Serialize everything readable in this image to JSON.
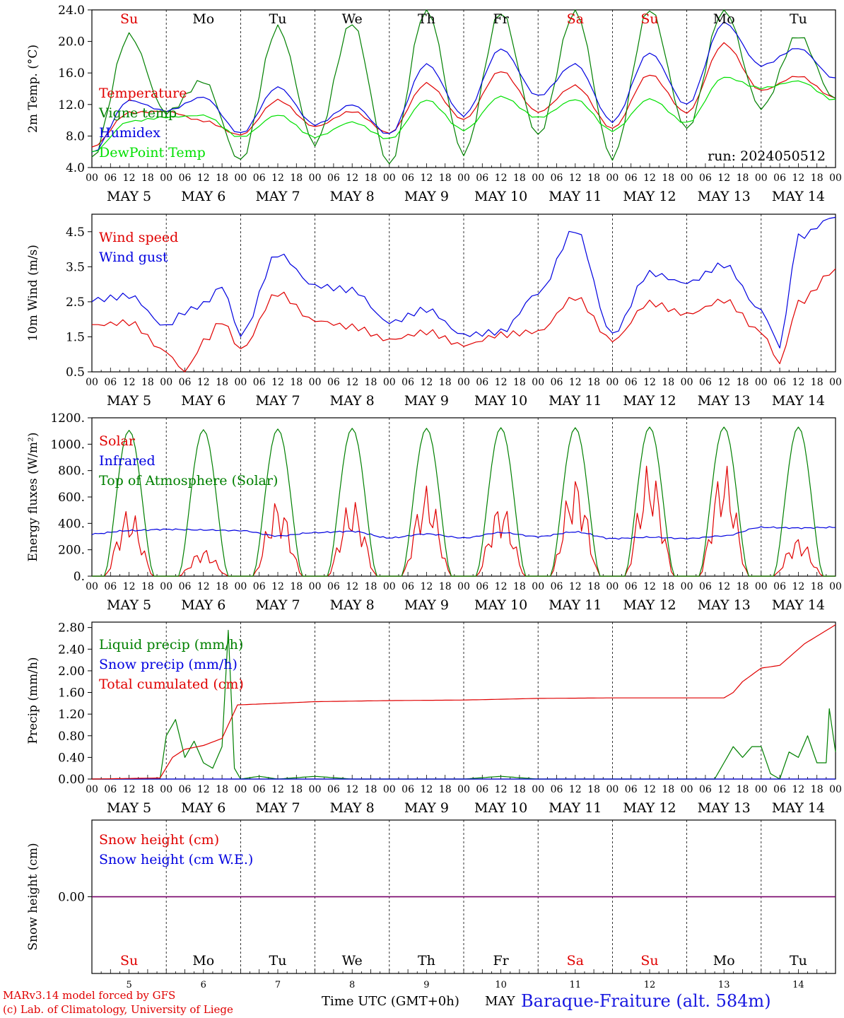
{
  "chart_data": [
    {
      "type": "line",
      "ylabel": "2m Temp. (°C)",
      "ylim": [
        4.0,
        24.0
      ],
      "yticks": [
        "4.0",
        "8.0",
        "12.0",
        "16.0",
        "20.0",
        "24.0"
      ],
      "x_hours": [
        0,
        12,
        24,
        36,
        48,
        60,
        72,
        84,
        96,
        108,
        120,
        132,
        144,
        156,
        168,
        180,
        192,
        204,
        216,
        228,
        240
      ],
      "annotation": "run: 2024050512",
      "series": [
        {
          "name": "Temperature",
          "color": "#e00000",
          "values": [
            6.6,
            11.0,
            11.2,
            10.0,
            8.2,
            12.6,
            9.2,
            11.1,
            8.3,
            14.6,
            10.0,
            16.2,
            11.0,
            14.4,
            9.0,
            15.9,
            11.0,
            19.8,
            13.8,
            15.6,
            12.8
          ]
        },
        {
          "name": "Vigne temp",
          "color": "#008000",
          "values": [
            5.2,
            20.8,
            10.8,
            14.8,
            4.6,
            21.6,
            6.8,
            22.4,
            4.4,
            24.5,
            5.9,
            24.0,
            8.2,
            24.0,
            5.0,
            24.0,
            8.6,
            24.0,
            11.3,
            20.7,
            12.7
          ]
        },
        {
          "name": "Humidex",
          "color": "#0000e0",
          "values": [
            5.8,
            12.5,
            11.2,
            13.0,
            8.4,
            14.3,
            9.5,
            12.0,
            8.2,
            17.1,
            10.5,
            19.0,
            13.0,
            17.1,
            9.8,
            18.6,
            12.0,
            22.5,
            17.0,
            19.2,
            15.3
          ]
        },
        {
          "name": "DewPoint Temp",
          "color": "#00e000",
          "values": [
            6.0,
            9.9,
            10.4,
            10.6,
            7.8,
            10.6,
            7.8,
            9.7,
            7.6,
            12.6,
            8.8,
            13.1,
            10.4,
            12.7,
            8.7,
            12.7,
            9.6,
            15.4,
            14.0,
            14.9,
            12.5
          ]
        }
      ]
    },
    {
      "type": "line",
      "ylabel": "10m Wind (m/s)",
      "ylim": [
        0.5,
        5.0
      ],
      "yticks": [
        "0.5",
        "1.5",
        "2.5",
        "3.5",
        "4.5"
      ],
      "x_hours": [
        0,
        12,
        24,
        30,
        36,
        42,
        48,
        60,
        72,
        84,
        96,
        108,
        120,
        132,
        144,
        156,
        168,
        180,
        192,
        204,
        216,
        222,
        228,
        240
      ],
      "series": [
        {
          "name": "Wind speed",
          "color": "#e00000",
          "values": [
            1.8,
            1.9,
            1.1,
            0.5,
            1.4,
            2.0,
            1.2,
            2.8,
            2.0,
            1.8,
            1.4,
            1.6,
            1.2,
            1.5,
            1.6,
            2.6,
            1.4,
            2.5,
            2.2,
            2.6,
            1.7,
            0.8,
            2.5,
            3.4
          ]
        },
        {
          "name": "Wind gust",
          "color": "#0000e0",
          "values": [
            2.6,
            2.7,
            1.8,
            2.2,
            2.4,
            2.9,
            1.5,
            3.8,
            2.9,
            2.8,
            1.9,
            2.3,
            1.6,
            1.7,
            2.8,
            4.6,
            1.6,
            3.3,
            3.0,
            3.5,
            2.2,
            1.2,
            4.3,
            4.9
          ]
        }
      ]
    },
    {
      "type": "line",
      "ylabel": "Energy fluxes (W/m²)",
      "ylim": [
        0,
        1200
      ],
      "yticks": [
        "0.",
        "200.",
        "400.",
        "600.",
        "800.",
        "1000.",
        "1200."
      ],
      "x_hours": [
        0,
        12,
        24,
        36,
        48,
        60,
        72,
        84,
        96,
        108,
        120,
        132,
        144,
        156,
        168,
        180,
        192,
        204,
        216,
        228,
        240
      ],
      "series": [
        {
          "name": "Solar",
          "color": "#e00000",
          "daily_peak": [
            520,
            210,
            590,
            590,
            690,
            570,
            770,
            860,
            860,
            300
          ]
        },
        {
          "name": "Infrared",
          "color": "#0000e0",
          "values": [
            320,
            345,
            355,
            350,
            345,
            305,
            330,
            340,
            290,
            320,
            290,
            330,
            300,
            335,
            285,
            295,
            285,
            305,
            370,
            365,
            370
          ]
        },
        {
          "name": "Top of Atmosphere (Solar)",
          "color": "#008000",
          "daily_peak": [
            1105,
            1110,
            1115,
            1120,
            1120,
            1125,
            1125,
            1130,
            1130,
            1130
          ]
        }
      ]
    },
    {
      "type": "line",
      "ylabel": "Precip (mm/h)",
      "ylim": [
        0,
        2.9
      ],
      "yticks": [
        "0.00",
        "0.40",
        "0.80",
        "1.20",
        "1.60",
        "2.00",
        "2.40",
        "2.80"
      ],
      "series": [
        {
          "name": "Liquid precip (mm/h)",
          "color": "#008000",
          "x_hours": [
            0,
            22,
            24,
            27,
            30,
            33,
            36,
            39,
            42,
            44,
            46,
            48,
            54,
            60,
            72,
            84,
            96,
            108,
            120,
            132,
            144,
            156,
            168,
            180,
            192,
            201,
            204,
            207,
            210,
            213,
            216,
            219,
            222,
            225,
            228,
            231,
            234,
            237,
            238,
            240
          ],
          "values": [
            0,
            0,
            0.8,
            1.1,
            0.4,
            0.7,
            0.3,
            0.2,
            0.6,
            2.75,
            0.2,
            0,
            0.05,
            0,
            0.05,
            0,
            0,
            0,
            0,
            0.05,
            0,
            0,
            0,
            0,
            0,
            0,
            0.3,
            0.6,
            0.4,
            0.6,
            0.6,
            0.1,
            0,
            0.5,
            0.4,
            0.8,
            0.3,
            0.3,
            1.3,
            0.5
          ]
        },
        {
          "name": "Snow precip (mm/h)",
          "color": "#0000e0",
          "x_hours": [
            0,
            240
          ],
          "values": [
            0,
            0
          ]
        },
        {
          "name": "Total cumulated (cm)",
          "color": "#e00000",
          "x_hours": [
            0,
            22,
            26,
            30,
            36,
            42,
            44,
            47,
            60,
            72,
            96,
            120,
            144,
            168,
            192,
            204,
            207,
            210,
            216,
            222,
            230,
            240
          ],
          "values": [
            0,
            0.02,
            0.4,
            0.55,
            0.62,
            0.75,
            1.0,
            1.37,
            1.4,
            1.43,
            1.45,
            1.46,
            1.49,
            1.5,
            1.5,
            1.5,
            1.6,
            1.8,
            2.05,
            2.1,
            2.5,
            2.85
          ]
        }
      ]
    },
    {
      "type": "line",
      "ylabel": "Snow height (cm)",
      "yticks": [
        "0.00"
      ],
      "series": [
        {
          "name": "Snow height (cm)",
          "color": "#e00000",
          "values": [
            0,
            0
          ]
        },
        {
          "name": "Snow height (cm W.E.)",
          "color": "#0000e0",
          "values": [
            0,
            0
          ]
        }
      ]
    }
  ],
  "x_axis": {
    "hour_labels": [
      "00",
      "06",
      "12",
      "18"
    ],
    "date_labels": [
      "MAY  5",
      "MAY  6",
      "MAY  7",
      "MAY  8",
      "MAY  9",
      "MAY 10",
      "MAY 11",
      "MAY 12",
      "MAY 13",
      "MAY 14"
    ],
    "weekdays": [
      "Su",
      "Mo",
      "Tu",
      "We",
      "Th",
      "Fr",
      "Sa",
      "Su",
      "Mo",
      "Tu"
    ],
    "weekday_colors": [
      "#e00000",
      "#000000",
      "#000000",
      "#000000",
      "#000000",
      "#000000",
      "#e00000",
      "#e00000",
      "#000000",
      "#000000"
    ],
    "day_numbers": [
      "5",
      "6",
      "7",
      "8",
      "9",
      "10",
      "11",
      "12",
      "13",
      "14"
    ]
  },
  "footer": {
    "model_line": "MARv3.14 model forced by GFS",
    "lab_line": "(c) Lab. of Climatology, University of Liege",
    "time_label": "Time UTC (GMT+0h)",
    "month_label": "MAY",
    "station": "Baraque-Fraiture (alt. 584m)"
  }
}
